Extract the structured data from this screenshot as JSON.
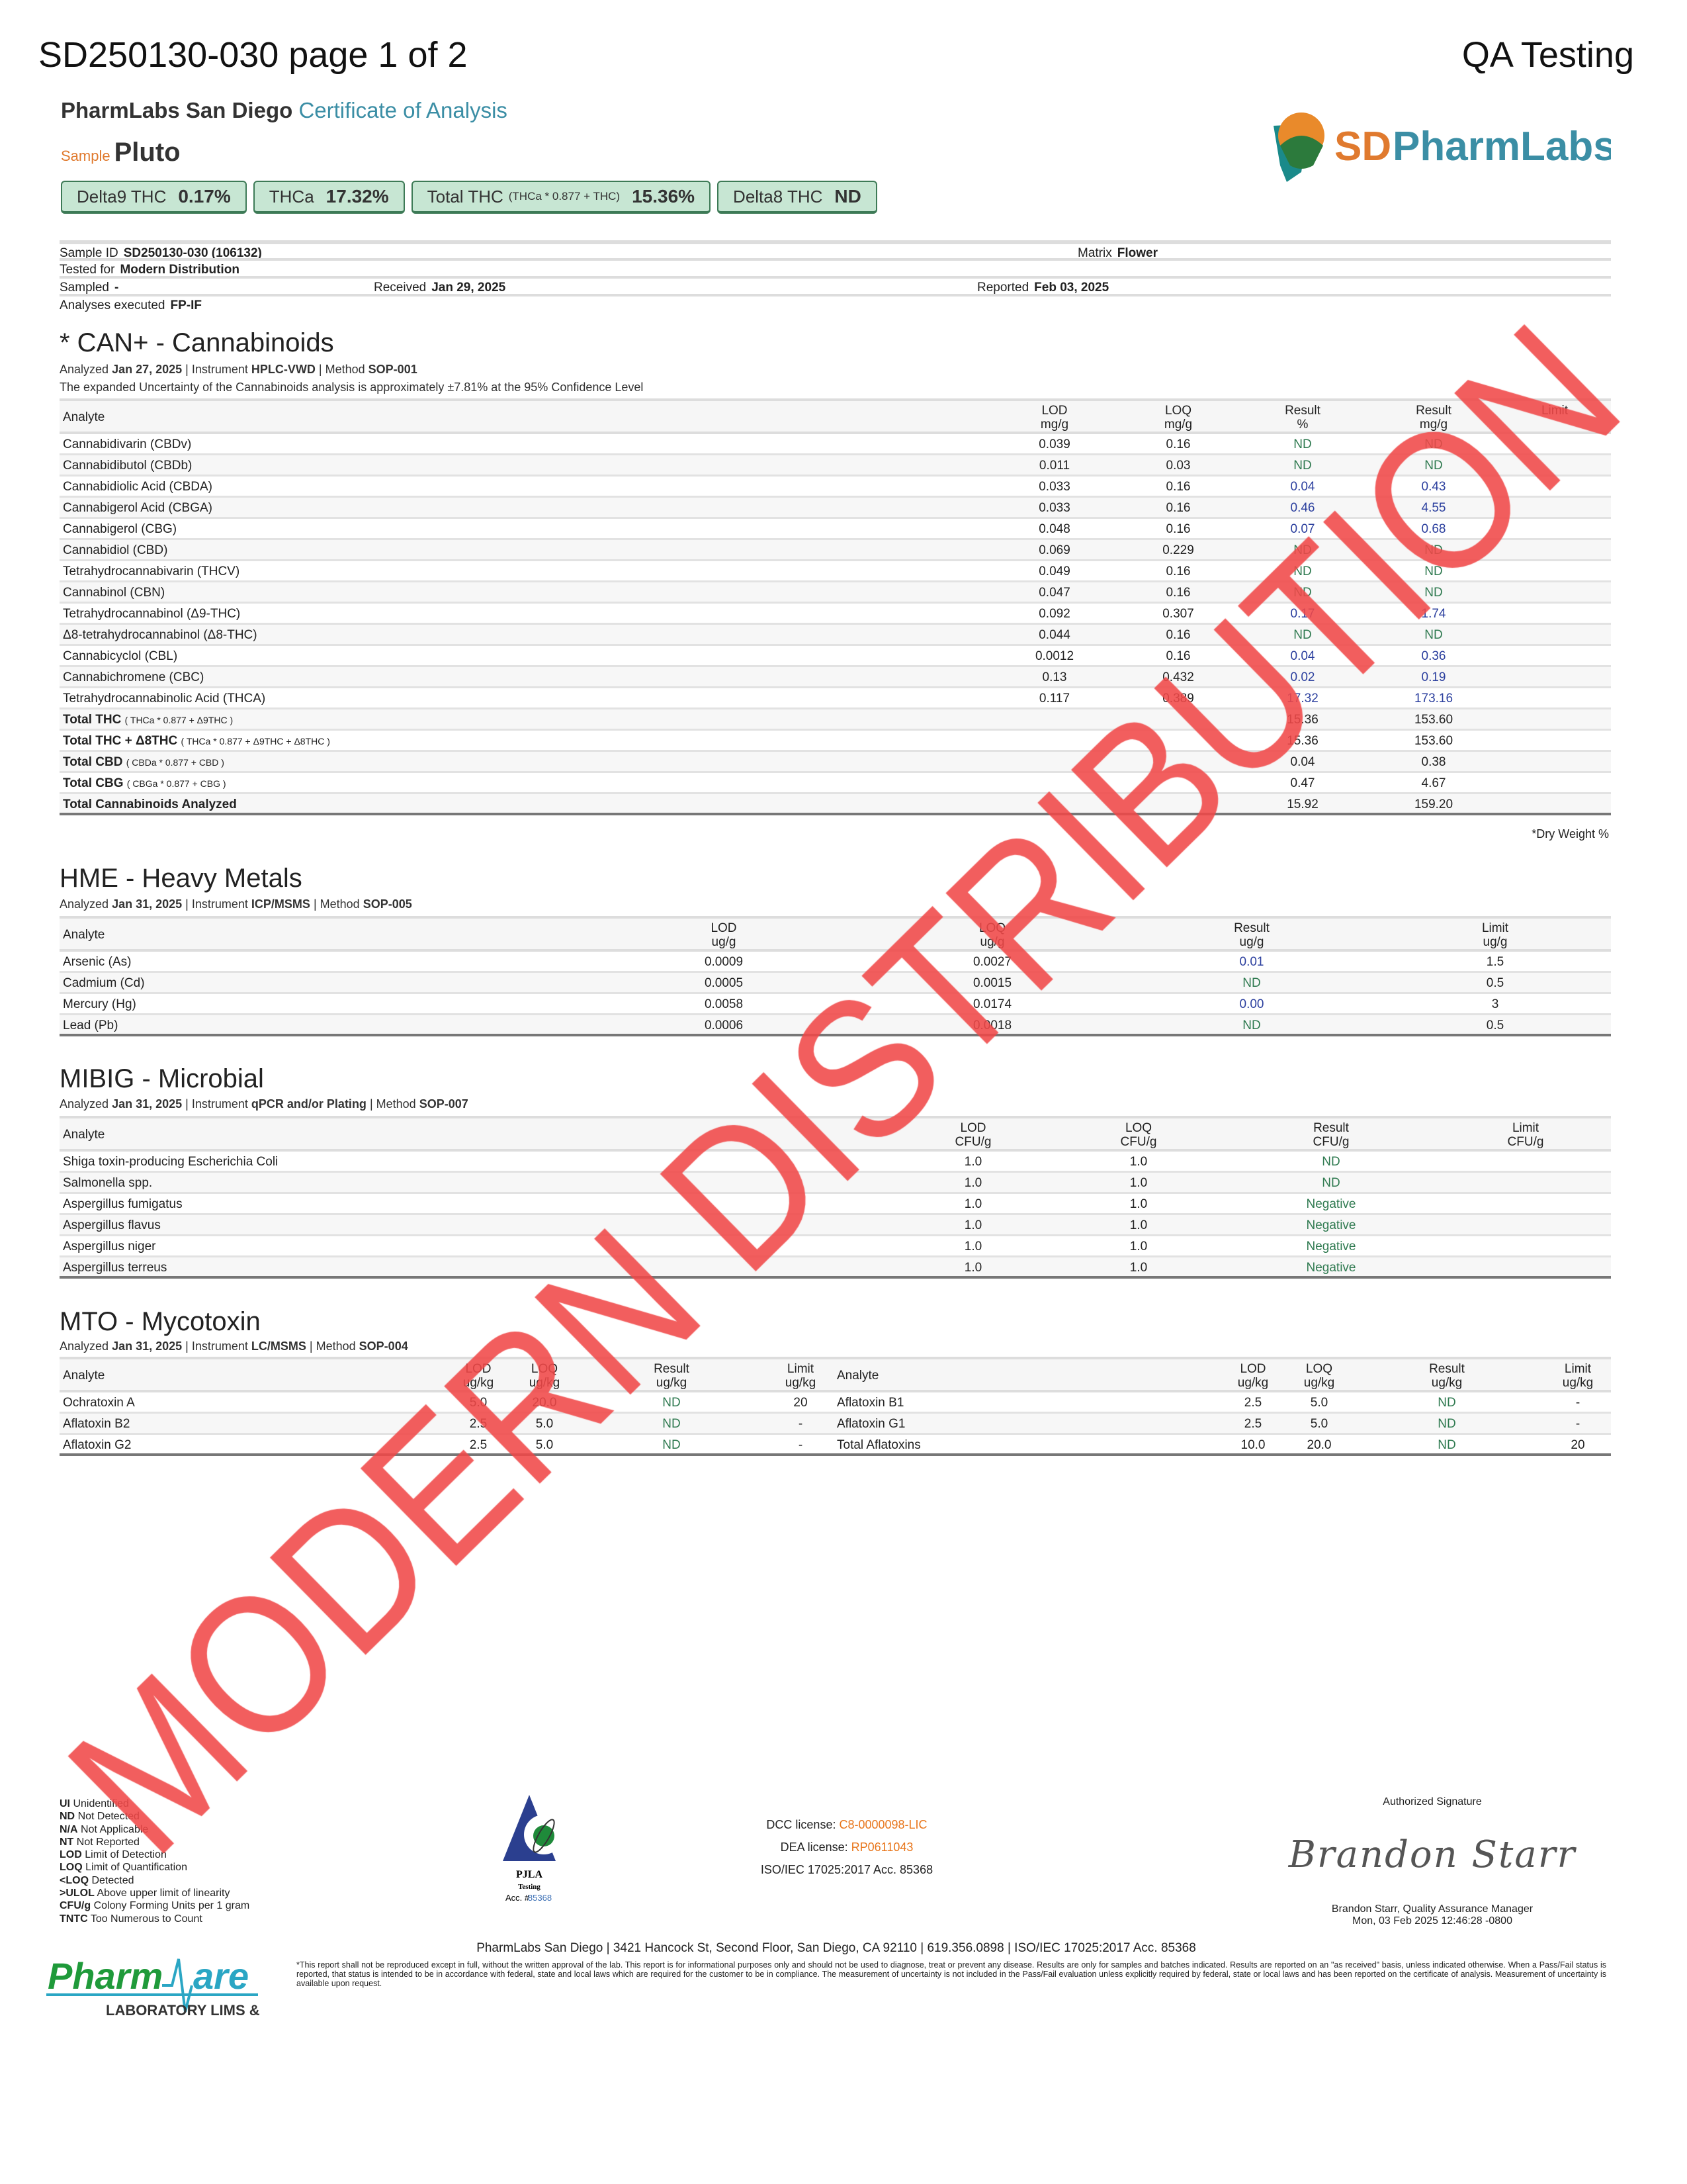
{
  "header": {
    "title": "SD250130-030 page 1 of 2",
    "right_label": "QA Testing",
    "lab_name": "PharmLabs San Diego",
    "doc_type": "Certificate of Analysis",
    "sample_label": "Sample",
    "sample_name": "Pluto",
    "logo_text": "SDPharmLabs",
    "logo_arc": "PharmLabs"
  },
  "badges": [
    {
      "label": "Delta9 THC",
      "formula": "",
      "value": "0.17%"
    },
    {
      "label": "THCa",
      "formula": "",
      "value": "17.32%"
    },
    {
      "label": "Total THC",
      "formula": "(THCa * 0.877 + THC)",
      "value": "15.36%"
    },
    {
      "label": "Delta8 THC",
      "formula": "",
      "value": "ND"
    }
  ],
  "info": {
    "sample_id_label": "Sample ID",
    "sample_id": "SD250130-030 (106132)",
    "matrix_label": "Matrix",
    "matrix": "Flower",
    "tested_for_label": "Tested for",
    "tested_for": "Modern Distribution",
    "sampled_label": "Sampled",
    "sampled": "-",
    "received_label": "Received",
    "received": "Jan 29, 2025",
    "reported_label": "Reported",
    "reported": "Feb 03, 2025",
    "analyses_label": "Analyses executed",
    "analyses": "FP-IF"
  },
  "cannabinoids": {
    "title": "* CAN+ - Cannabinoids",
    "analyzed": "Jan 27, 2025",
    "instrument": "HPLC-VWD",
    "method": "SOP-001",
    "uncertainty": "The expanded Uncertainty of the Cannabinoids analysis is approximately ±7.81% at the 95% Confidence Level",
    "headers": [
      "Analyte",
      "LOD\nmg/g",
      "LOQ\nmg/g",
      "Result\n%",
      "Result\nmg/g",
      "Limit"
    ],
    "rows": [
      {
        "name": "Cannabidivarin (CBDv)",
        "lod": "0.039",
        "loq": "0.16",
        "pct": "ND",
        "mg": "ND",
        "limit": ""
      },
      {
        "name": "Cannabidibutol (CBDb)",
        "lod": "0.011",
        "loq": "0.03",
        "pct": "ND",
        "mg": "ND",
        "limit": ""
      },
      {
        "name": "Cannabidiolic Acid (CBDA)",
        "lod": "0.033",
        "loq": "0.16",
        "pct": "0.04",
        "mg": "0.43",
        "limit": ""
      },
      {
        "name": "Cannabigerol Acid (CBGA)",
        "lod": "0.033",
        "loq": "0.16",
        "pct": "0.46",
        "mg": "4.55",
        "limit": ""
      },
      {
        "name": "Cannabigerol (CBG)",
        "lod": "0.048",
        "loq": "0.16",
        "pct": "0.07",
        "mg": "0.68",
        "limit": ""
      },
      {
        "name": "Cannabidiol (CBD)",
        "lod": "0.069",
        "loq": "0.229",
        "pct": "ND",
        "mg": "ND",
        "limit": ""
      },
      {
        "name": "Tetrahydrocannabivarin (THCV)",
        "lod": "0.049",
        "loq": "0.16",
        "pct": "ND",
        "mg": "ND",
        "limit": ""
      },
      {
        "name": "Cannabinol (CBN)",
        "lod": "0.047",
        "loq": "0.16",
        "pct": "ND",
        "mg": "ND",
        "limit": ""
      },
      {
        "name": "Tetrahydrocannabinol (Δ9-THC)",
        "lod": "0.092",
        "loq": "0.307",
        "pct": "0.17",
        "mg": "1.74",
        "limit": ""
      },
      {
        "name": "Δ8-tetrahydrocannabinol (Δ8-THC)",
        "lod": "0.044",
        "loq": "0.16",
        "pct": "ND",
        "mg": "ND",
        "limit": ""
      },
      {
        "name": "Cannabicyclol (CBL)",
        "lod": "0.0012",
        "loq": "0.16",
        "pct": "0.04",
        "mg": "0.36",
        "limit": ""
      },
      {
        "name": "Cannabichromene (CBC)",
        "lod": "0.13",
        "loq": "0.432",
        "pct": "0.02",
        "mg": "0.19",
        "limit": ""
      },
      {
        "name": "Tetrahydrocannabinolic Acid (THCA)",
        "lod": "0.117",
        "loq": "0.389",
        "pct": "17.32",
        "mg": "173.16",
        "limit": ""
      }
    ],
    "totals": [
      {
        "name": "Total THC",
        "formula": "( THCa * 0.877 + Δ9THC )",
        "pct": "15.36",
        "mg": "153.60"
      },
      {
        "name": "Total THC + Δ8THC",
        "formula": "( THCa * 0.877 + Δ9THC + Δ8THC )",
        "pct": "15.36",
        "mg": "153.60"
      },
      {
        "name": "Total CBD",
        "formula": "( CBDa * 0.877 + CBD )",
        "pct": "0.04",
        "mg": "0.38"
      },
      {
        "name": "Total CBG",
        "formula": "( CBGa * 0.877 + CBG )",
        "pct": "0.47",
        "mg": "4.67"
      },
      {
        "name": "Total Cannabinoids Analyzed",
        "formula": "",
        "pct": "15.92",
        "mg": "159.20"
      }
    ],
    "footnote": "*Dry Weight %"
  },
  "metals": {
    "title": "HME - Heavy Metals",
    "analyzed": "Jan 31, 2025",
    "instrument": "ICP/MSMS",
    "method": "SOP-005",
    "headers": [
      "Analyte",
      "LOD\nug/g",
      "LOQ\nug/g",
      "Result\nug/g",
      "Limit\nug/g"
    ],
    "rows": [
      [
        "Arsenic (As)",
        "0.0009",
        "0.0027",
        "0.01",
        "1.5"
      ],
      [
        "Cadmium (Cd)",
        "0.0005",
        "0.0015",
        "ND",
        "0.5"
      ],
      [
        "Mercury (Hg)",
        "0.0058",
        "0.0174",
        "0.00",
        "3"
      ],
      [
        "Lead (Pb)",
        "0.0006",
        "0.0018",
        "ND",
        "0.5"
      ]
    ]
  },
  "microbial": {
    "title": "MIBIG - Microbial",
    "analyzed": "Jan 31, 2025",
    "instrument": "qPCR and/or Plating",
    "method": "SOP-007",
    "headers": [
      "Analyte",
      "LOD\nCFU/g",
      "LOQ\nCFU/g",
      "Result\nCFU/g",
      "Limit\nCFU/g"
    ],
    "rows": [
      [
        "Shiga toxin-producing Escherichia Coli",
        "1.0",
        "1.0",
        "ND",
        ""
      ],
      [
        "Salmonella spp.",
        "1.0",
        "1.0",
        "ND",
        ""
      ],
      [
        "Aspergillus fumigatus",
        "1.0",
        "1.0",
        "Negative",
        ""
      ],
      [
        "Aspergillus flavus",
        "1.0",
        "1.0",
        "Negative",
        ""
      ],
      [
        "Aspergillus niger",
        "1.0",
        "1.0",
        "Negative",
        ""
      ],
      [
        "Aspergillus terreus",
        "1.0",
        "1.0",
        "Negative",
        ""
      ]
    ]
  },
  "mycotoxin": {
    "title": "MTO - Mycotoxin",
    "analyzed": "Jan 31, 2025",
    "instrument": "LC/MSMS",
    "method": "SOP-004",
    "headers": [
      "Analyte",
      "LOD\nug/kg",
      "LOQ\nug/kg",
      "Result\nug/kg",
      "Limit\nug/kg",
      "Analyte",
      "LOD\nug/kg",
      "LOQ\nug/kg",
      "Result\nug/kg",
      "Limit\nug/kg"
    ],
    "rows": [
      [
        "Ochratoxin A",
        "5.0",
        "20.0",
        "ND",
        "20",
        "Aflatoxin B1",
        "2.5",
        "5.0",
        "ND",
        "-"
      ],
      [
        "Aflatoxin B2",
        "2.5",
        "5.0",
        "ND",
        "-",
        "Aflatoxin G1",
        "2.5",
        "5.0",
        "ND",
        "-"
      ],
      [
        "Aflatoxin G2",
        "2.5",
        "5.0",
        "ND",
        "-",
        "Total Aflatoxins",
        "10.0",
        "20.0",
        "ND",
        "20"
      ]
    ]
  },
  "labels": {
    "analyzed": "Analyzed",
    "instrument": "Instrument",
    "method": "Method"
  },
  "legend": [
    [
      "UI",
      "Unidentified"
    ],
    [
      "ND",
      "Not Detected"
    ],
    [
      "N/A",
      "Not Applicable"
    ],
    [
      "NT",
      "Not Reported"
    ],
    [
      "LOD",
      "Limit of Detection"
    ],
    [
      "LOQ",
      "Limit of Quantification"
    ],
    [
      "<LOQ",
      "Detected"
    ],
    [
      ">ULOL",
      "Above upper limit of linearity"
    ],
    [
      "CFU/g",
      "Colony Forming Units per 1 gram"
    ],
    [
      "TNTC",
      "Too Numerous to Count"
    ]
  ],
  "pjla": {
    "name": "PJLA",
    "sub": "Testing",
    "acc_label": "Acc. #",
    "acc": "85368"
  },
  "licenses": {
    "dcc_label": "DCC license:",
    "dcc": "C8-0000098-LIC",
    "dea_label": "DEA license:",
    "dea": "RP0611043",
    "iso": "ISO/IEC 17025:2017 Acc. 85368"
  },
  "signature": {
    "label": "Authorized Signature",
    "script": "Brandon Starr",
    "name": "Brandon Starr, Quality Assurance Manager",
    "date": "Mon, 03 Feb 2025 12:46:28 -0800"
  },
  "footer": {
    "address": "PharmLabs San Diego | 3421 Hancock St, Second Floor, San Diego, CA 92110 | 619.356.0898 | ISO/IEC 17025:2017 Acc. 85368",
    "disclaimer": "*This report shall not be reproduced except in full, without the written approval of the lab. This report is for informational purposes only and should not be used to diagnose, treat or prevent any disease. Results are only for samples and batches indicated. Results are reported on an \"as received\" basis, unless indicated otherwise. When a Pass/Fail status is reported, that status is intended to be in accordance with federal, state and local laws which are required for the customer to be in compliance. The measurement of uncertainty is not included in the Pass/Fail evaluation unless explicitly required by federal, state or local laws and has been reported on the certificate of analysis. Measurement of uncertainty is available upon request.",
    "pw_logo": "PharmWare",
    "pw_sub": "LABORATORY LIMS & ELN"
  },
  "watermark": "MODERN DISTRIBUTION",
  "colors": {
    "nd": "#2f7a50",
    "value": "#2b3f9e",
    "badge": "#c7e6d3",
    "watermark": "#f04848",
    "accent": "#3b8ea5",
    "orange": "#e8751a"
  }
}
